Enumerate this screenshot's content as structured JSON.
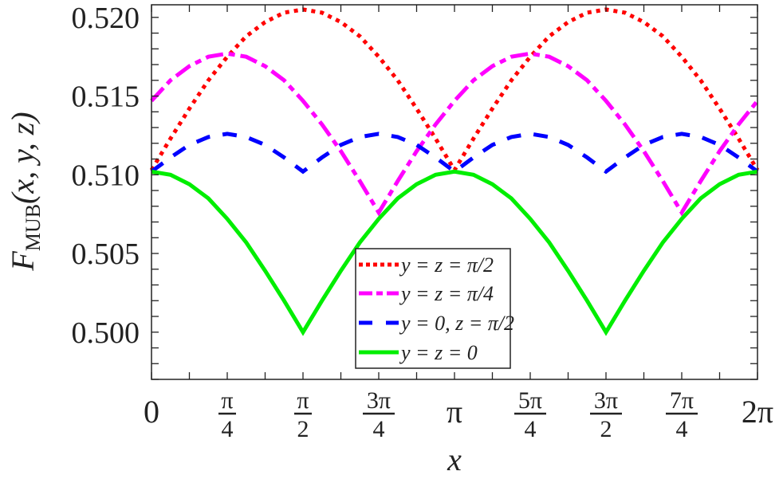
{
  "chart_data": {
    "type": "line",
    "title": "",
    "xlabel": "x",
    "ylabel": {
      "main": "F",
      "sub": "MUB",
      "args": "(x, y, z)"
    },
    "x_unit": "pi",
    "xlim": [
      0,
      2
    ],
    "ylim": [
      0.497,
      0.5208
    ],
    "grid": false,
    "legend_position": "bottom-center",
    "x_ticks": [
      {
        "value": 0,
        "label": "0"
      },
      {
        "value": 0.25,
        "num": "π",
        "den": "4"
      },
      {
        "value": 0.5,
        "num": "π",
        "den": "2"
      },
      {
        "value": 0.75,
        "num": "3π",
        "den": "4"
      },
      {
        "value": 1,
        "label": "π"
      },
      {
        "value": 1.25,
        "num": "5π",
        "den": "4"
      },
      {
        "value": 1.5,
        "num": "3π",
        "den": "2"
      },
      {
        "value": 1.75,
        "num": "7π",
        "den": "4"
      },
      {
        "value": 2,
        "label": "2π"
      }
    ],
    "y_ticks": [
      {
        "value": 0.5,
        "label": "0.500"
      },
      {
        "value": 0.505,
        "label": "0.505"
      },
      {
        "value": 0.51,
        "label": "0.510"
      },
      {
        "value": 0.515,
        "label": "0.515"
      },
      {
        "value": 0.52,
        "label": "0.520"
      }
    ],
    "x": [
      0,
      0.0625,
      0.125,
      0.1875,
      0.25,
      0.3125,
      0.375,
      0.4375,
      0.5,
      0.5625,
      0.625,
      0.6875,
      0.75,
      0.8125,
      0.875,
      0.9375,
      1,
      1.0625,
      1.125,
      1.1875,
      1.25,
      1.3125,
      1.375,
      1.4375,
      1.5,
      1.5625,
      1.625,
      1.6875,
      1.75,
      1.8125,
      1.875,
      1.9375,
      2
    ],
    "series": [
      {
        "name": "y = z = π/2",
        "color": "#ff0000",
        "style": "dotted",
        "values": [
          0.5103,
          0.5123,
          0.5142,
          0.516,
          0.5175,
          0.5188,
          0.5197,
          0.5203,
          0.5205,
          0.5203,
          0.5197,
          0.5188,
          0.5175,
          0.516,
          0.5142,
          0.5123,
          0.5103,
          0.5123,
          0.5142,
          0.516,
          0.5175,
          0.5188,
          0.5197,
          0.5203,
          0.5205,
          0.5203,
          0.5197,
          0.5188,
          0.5175,
          0.516,
          0.5142,
          0.5123,
          0.5103
        ]
      },
      {
        "name": "y = z = π/4",
        "color": "#ff00ff",
        "style": "dashdot",
        "values": [
          0.5147,
          0.516,
          0.5169,
          0.5175,
          0.5177,
          0.5175,
          0.5169,
          0.516,
          0.5147,
          0.5132,
          0.5115,
          0.5096,
          0.5076,
          0.5096,
          0.5115,
          0.5132,
          0.5147,
          0.516,
          0.5169,
          0.5175,
          0.5177,
          0.5175,
          0.5169,
          0.516,
          0.5147,
          0.5132,
          0.5115,
          0.5096,
          0.5076,
          0.5096,
          0.5115,
          0.5132,
          0.5147
        ]
      },
      {
        "name": "y = 0, z = π/2",
        "color": "#0000ff",
        "style": "dashed",
        "values": [
          0.5102,
          0.5111,
          0.5119,
          0.5124,
          0.5126,
          0.5124,
          0.5119,
          0.5111,
          0.5102,
          0.5111,
          0.5119,
          0.5124,
          0.5126,
          0.5124,
          0.5119,
          0.5111,
          0.5102,
          0.5111,
          0.5119,
          0.5124,
          0.5126,
          0.5124,
          0.5119,
          0.5111,
          0.5102,
          0.5111,
          0.5119,
          0.5124,
          0.5126,
          0.5124,
          0.5119,
          0.5111,
          0.5102
        ]
      },
      {
        "name": "y = z = 0",
        "color": "#00ee00",
        "style": "solid",
        "values": [
          0.5102,
          0.51,
          0.5094,
          0.5085,
          0.5072,
          0.5057,
          0.5039,
          0.502,
          0.5,
          0.502,
          0.5039,
          0.5057,
          0.5072,
          0.5085,
          0.5094,
          0.51,
          0.5102,
          0.51,
          0.5094,
          0.5085,
          0.5072,
          0.5057,
          0.5039,
          0.502,
          0.5,
          0.502,
          0.5039,
          0.5057,
          0.5072,
          0.5085,
          0.5094,
          0.51,
          0.5102
        ]
      }
    ]
  }
}
